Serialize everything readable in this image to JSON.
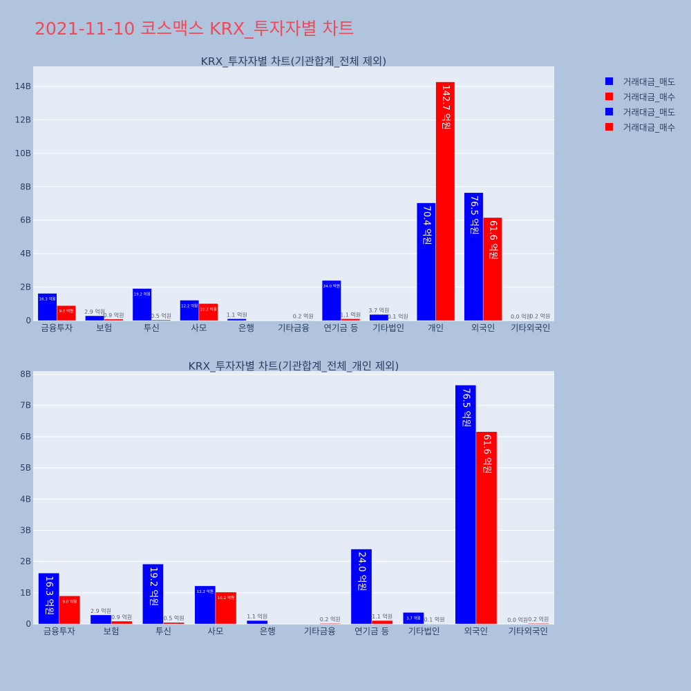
{
  "page_title": "2021-11-10 코스맥스 KRX_투자자별 차트",
  "colors": {
    "sell": "#0000ff",
    "buy": "#ff0000",
    "plot_bg": "#e5ecf6",
    "page_bg": "#b0c4de",
    "text": "#2a3f5f"
  },
  "legend": [
    {
      "label": "거래대금_매도",
      "color": "#0000ff"
    },
    {
      "label": "거래대금_매수",
      "color": "#ff0000"
    },
    {
      "label": "거래대금_매도",
      "color": "#0000ff"
    },
    {
      "label": "거래대금_매수",
      "color": "#ff0000"
    }
  ],
  "chart_data": [
    {
      "type": "bar",
      "title": "KRX_투자자별 차트(기관합계_전체 제외)",
      "categories": [
        "금융투자",
        "보험",
        "투신",
        "사모",
        "은행",
        "기타금융",
        "연기금 등",
        "기타법인",
        "개인",
        "외국인",
        "기타외국인"
      ],
      "series": [
        {
          "values": [
            1.63,
            0.29,
            1.92,
            1.22,
            0.11,
            0.0,
            2.4,
            0.37,
            7.04,
            7.65,
            0.0
          ],
          "labels": [
            "16.3 억원",
            "2.9 억원",
            "19.2 억원",
            "12.2 억원",
            "1.1 억원",
            "",
            "24.0 억원",
            "3.7 억원",
            "70.4 억원",
            "76.5 억원",
            "0.0 억원"
          ]
        },
        {
          "values": [
            0.9,
            0.09,
            0.05,
            1.02,
            0.0,
            0.02,
            0.11,
            0.01,
            14.27,
            6.16,
            0.02
          ],
          "labels": [
            "9.0 억원",
            "0.9 억원",
            "0.5 억원",
            "10.2 억원",
            "",
            "0.2 억원",
            "1.1 억원",
            "0.1 억원",
            "142.7 억원",
            "61.6 억원",
            "0.2 억원"
          ]
        }
      ],
      "ylim": [
        0,
        15.2
      ],
      "yticks": [
        0,
        2,
        4,
        6,
        8,
        10,
        12,
        14
      ],
      "ytick_labels": [
        "0",
        "2B",
        "4B",
        "6B",
        "8B",
        "10B",
        "12B",
        "14B"
      ]
    },
    {
      "type": "bar",
      "title": "KRX_투자자별 차트(기관합계_전체_개인 제외)",
      "categories": [
        "금융투자",
        "보험",
        "투신",
        "사모",
        "은행",
        "기타금융",
        "연기금 등",
        "기타법인",
        "외국인",
        "기타외국인"
      ],
      "series": [
        {
          "values": [
            1.63,
            0.29,
            1.92,
            1.22,
            0.11,
            0.0,
            2.4,
            0.37,
            7.65,
            0.0
          ],
          "labels": [
            "16.3 억원",
            "2.9 억원",
            "19.2 억원",
            "12.2 억원",
            "1.1 억원",
            "",
            "24.0 억원",
            "3.7 억원",
            "76.5 억원",
            "0.0 억원"
          ]
        },
        {
          "values": [
            0.9,
            0.09,
            0.05,
            1.02,
            0.0,
            0.02,
            0.11,
            0.01,
            6.16,
            0.02
          ],
          "labels": [
            "9.0 억원",
            "0.9 억원",
            "0.5 억원",
            "10.2 억원",
            "",
            "0.2 억원",
            "1.1 억원",
            "0.1 억원",
            "61.6 억원",
            "0.2 억원"
          ]
        }
      ],
      "ylim": [
        0,
        8.1
      ],
      "yticks": [
        0,
        1,
        2,
        3,
        4,
        5,
        6,
        7,
        8
      ],
      "ytick_labels": [
        "0",
        "1B",
        "2B",
        "3B",
        "4B",
        "5B",
        "6B",
        "7B",
        "8B"
      ]
    }
  ]
}
